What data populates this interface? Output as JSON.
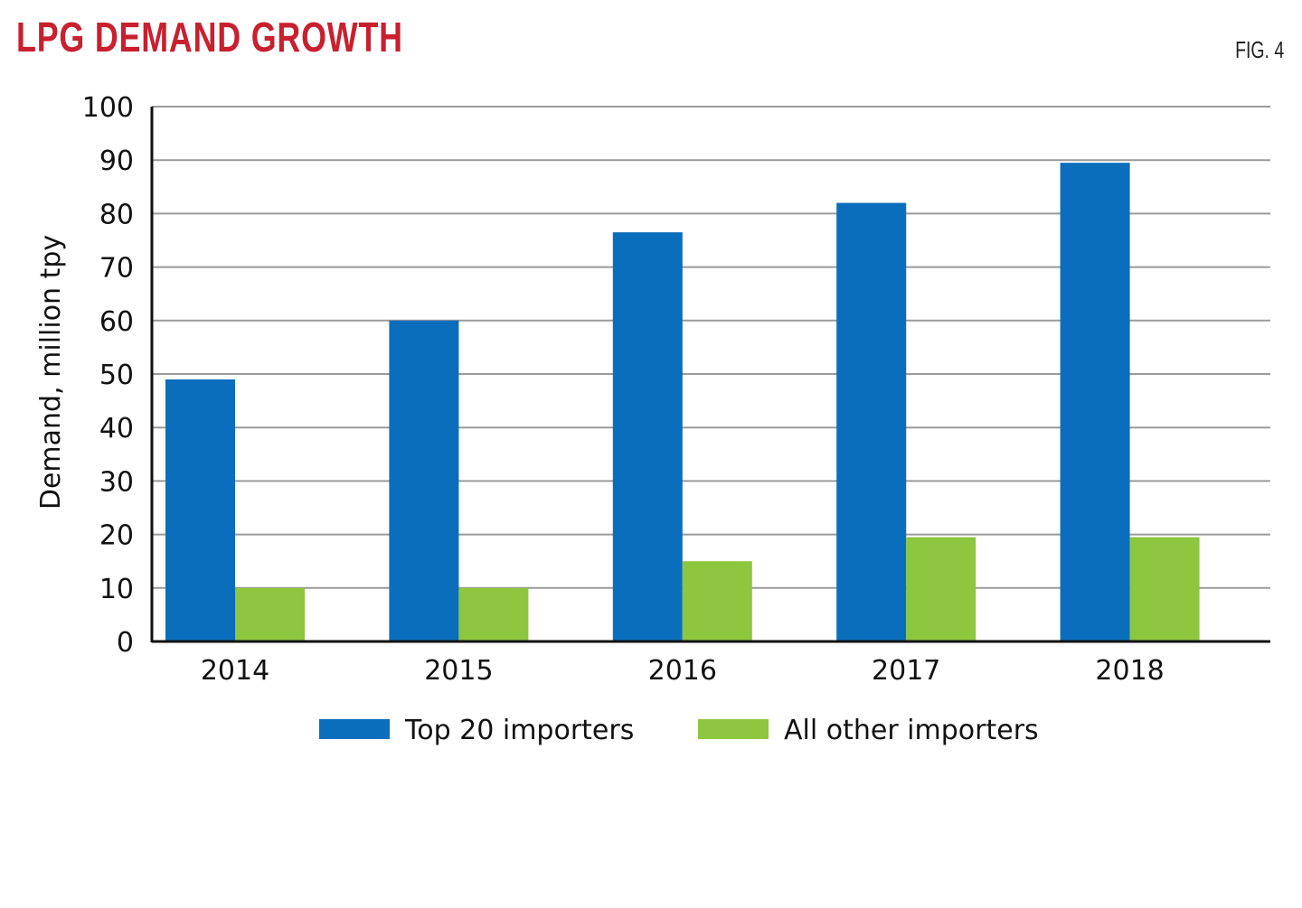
{
  "header": {
    "title": "LPG DEMAND GROWTH",
    "figure_label": "FIG. 4"
  },
  "chart_data": {
    "type": "bar",
    "title": "LPG DEMAND GROWTH",
    "xlabel": "",
    "ylabel": "Demand, million tpy",
    "ylim": [
      0,
      100
    ],
    "yticks": [
      0,
      10,
      20,
      30,
      40,
      50,
      60,
      70,
      80,
      90,
      100
    ],
    "grid": true,
    "legend_position": "bottom",
    "categories": [
      "2014",
      "2015",
      "2016",
      "2017",
      "2018"
    ],
    "series": [
      {
        "name": "Top 20 importers",
        "color": "#0a6ebd",
        "values": [
          49,
          60,
          76.5,
          82,
          89.5
        ]
      },
      {
        "name": "All other importers",
        "color": "#8dc63f",
        "values": [
          10,
          10,
          15,
          19.5,
          19.5
        ]
      }
    ]
  }
}
